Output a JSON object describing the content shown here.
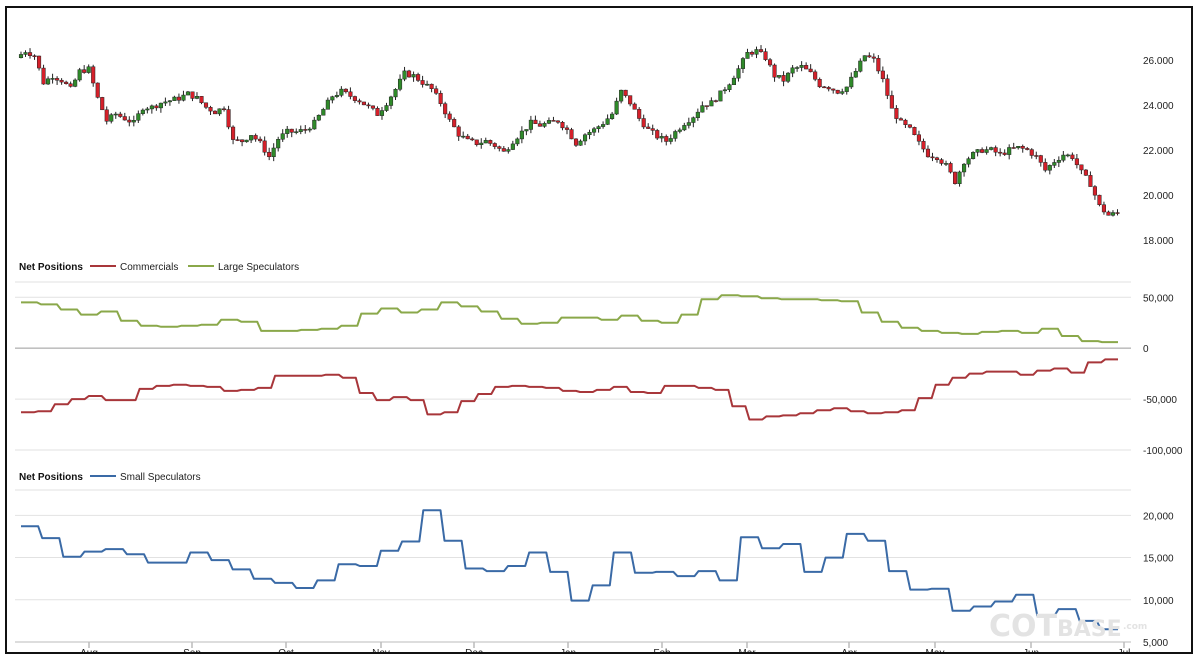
{
  "colors": {
    "up": "#2f8a2a",
    "down": "#d5202a",
    "wick": "#222222",
    "commercials": "#a8363a",
    "large": "#8aa84a",
    "small": "#3a6aa6",
    "grid": "#e2e2e2",
    "zero": "#9a9a9a"
  },
  "x_axis": {
    "labels": [
      "Aug",
      "Sep",
      "Oct",
      "Nov",
      "Dec",
      "Jan",
      "Feb",
      "Mar",
      "Apr",
      "May",
      "Jun",
      "Jul"
    ]
  },
  "panels": [
    {
      "title": "",
      "legend": []
    },
    {
      "title": "Net Positions",
      "legend": [
        {
          "name": "Commercials",
          "color": "#a8363a"
        },
        {
          "name": "Large Speculators",
          "color": "#8aa84a"
        }
      ]
    },
    {
      "title": "Net Positions",
      "legend": [
        {
          "name": "Small Speculators",
          "color": "#3a6aa6"
        }
      ]
    }
  ],
  "watermark": {
    "part1": "COT",
    "part2": "BASE",
    "part3": ".com"
  },
  "chart_data": [
    {
      "type": "candlestick",
      "title": "",
      "y_ticks": [
        "26.000",
        "24.000",
        "22.000",
        "20.000",
        "18.000"
      ],
      "ylim": [
        18000,
        27600
      ],
      "x_months": [
        "Aug",
        "Sep",
        "Oct",
        "Nov",
        "Dec",
        "Jan",
        "Feb",
        "Mar",
        "Apr",
        "May",
        "Jun",
        "Jul"
      ],
      "price_path": [
        26100,
        26400,
        26200,
        25000,
        25300,
        25100,
        24700,
        25500,
        25600,
        24300,
        23300,
        23600,
        23400,
        23200,
        23900,
        23900,
        24100,
        24200,
        24300,
        24500,
        24300,
        23900,
        23700,
        23900,
        22400,
        22400,
        22700,
        22300,
        21700,
        22500,
        22800,
        22800,
        22900,
        23200,
        23800,
        24400,
        24600,
        24400,
        24200,
        23900,
        23600,
        24100,
        24700,
        25400,
        25300,
        25000,
        24700,
        24100,
        23300,
        22700,
        22400,
        22300,
        22400,
        22200,
        21900,
        22400,
        22800,
        23200,
        23100,
        23200,
        23300,
        22900,
        22300,
        22700,
        22900,
        23200,
        23600,
        24600,
        24100,
        23400,
        22900,
        22600,
        22400,
        22800,
        23200,
        23500,
        24000,
        24100,
        24500,
        25000,
        25600,
        26300,
        26400,
        26100,
        25300,
        25100,
        25600,
        25700,
        25400,
        24900,
        24800,
        24600,
        24800,
        25500,
        26200,
        26000,
        25100,
        23800,
        23200,
        22900,
        22300,
        21800,
        21700,
        21300,
        20600,
        21500,
        21800,
        22000,
        22000,
        21800,
        22000,
        22100,
        22000,
        21700,
        21100,
        21500,
        21800,
        21700,
        21000,
        20500,
        19500,
        19100,
        19200
      ]
    },
    {
      "type": "line",
      "title": "Net Positions",
      "y_ticks": [
        "50,000",
        "0",
        "-50,000",
        "-100,000"
      ],
      "ylim": [
        -100000,
        50000
      ],
      "series": [
        {
          "name": "Commercials",
          "values": [
            -63000,
            -62000,
            -55000,
            -50000,
            -47000,
            -51000,
            -51000,
            -40000,
            -37000,
            -36000,
            -37000,
            -38000,
            -42000,
            -41000,
            -39000,
            -27000,
            -27000,
            -27000,
            -26000,
            -29000,
            -44000,
            -51000,
            -48000,
            -51000,
            -65000,
            -63000,
            -52000,
            -45000,
            -38000,
            -37000,
            -38000,
            -39000,
            -42000,
            -43000,
            -41000,
            -38000,
            -43000,
            -44000,
            -37000,
            -37000,
            -39000,
            -41000,
            -57000,
            -70000,
            -67000,
            -66000,
            -64000,
            -61000,
            -59000,
            -62000,
            -64000,
            -63000,
            -61000,
            -49000,
            -36000,
            -29000,
            -25000,
            -23000,
            -23000,
            -26000,
            -22000,
            -20000,
            -24000,
            -14000,
            -11000
          ]
        },
        {
          "name": "Large Speculators",
          "values": [
            45000,
            43000,
            38000,
            33000,
            36000,
            27000,
            22000,
            21000,
            22000,
            23000,
            28000,
            26000,
            17000,
            17000,
            18000,
            19000,
            22000,
            34000,
            39000,
            35000,
            38000,
            45000,
            41000,
            36000,
            29000,
            24000,
            25000,
            30000,
            30000,
            28000,
            32000,
            27000,
            25000,
            33000,
            48000,
            52000,
            51000,
            49000,
            48000,
            48000,
            47000,
            46000,
            35000,
            26000,
            20000,
            17000,
            15000,
            14000,
            16000,
            17000,
            15000,
            19000,
            12000,
            7000,
            6000
          ]
        }
      ]
    },
    {
      "type": "line",
      "title": "Net Positions",
      "y_ticks": [
        "20,000",
        "15,000",
        "10,000",
        "5,000"
      ],
      "ylim": [
        5000,
        22000
      ],
      "series": [
        {
          "name": "Small Speculators",
          "values": [
            18700,
            17300,
            15100,
            15700,
            16000,
            15400,
            14400,
            14400,
            15600,
            14700,
            13600,
            12500,
            12000,
            11400,
            12300,
            14200,
            14000,
            15800,
            16900,
            20600,
            17000,
            13700,
            13400,
            14000,
            15600,
            13300,
            9900,
            11700,
            15600,
            13200,
            13300,
            12800,
            13400,
            12300,
            17400,
            16100,
            16600,
            13300,
            15000,
            17800,
            17000,
            13400,
            11200,
            11300,
            8700,
            9200,
            9800,
            10600,
            8100,
            8900,
            7500,
            6500
          ]
        }
      ]
    }
  ]
}
